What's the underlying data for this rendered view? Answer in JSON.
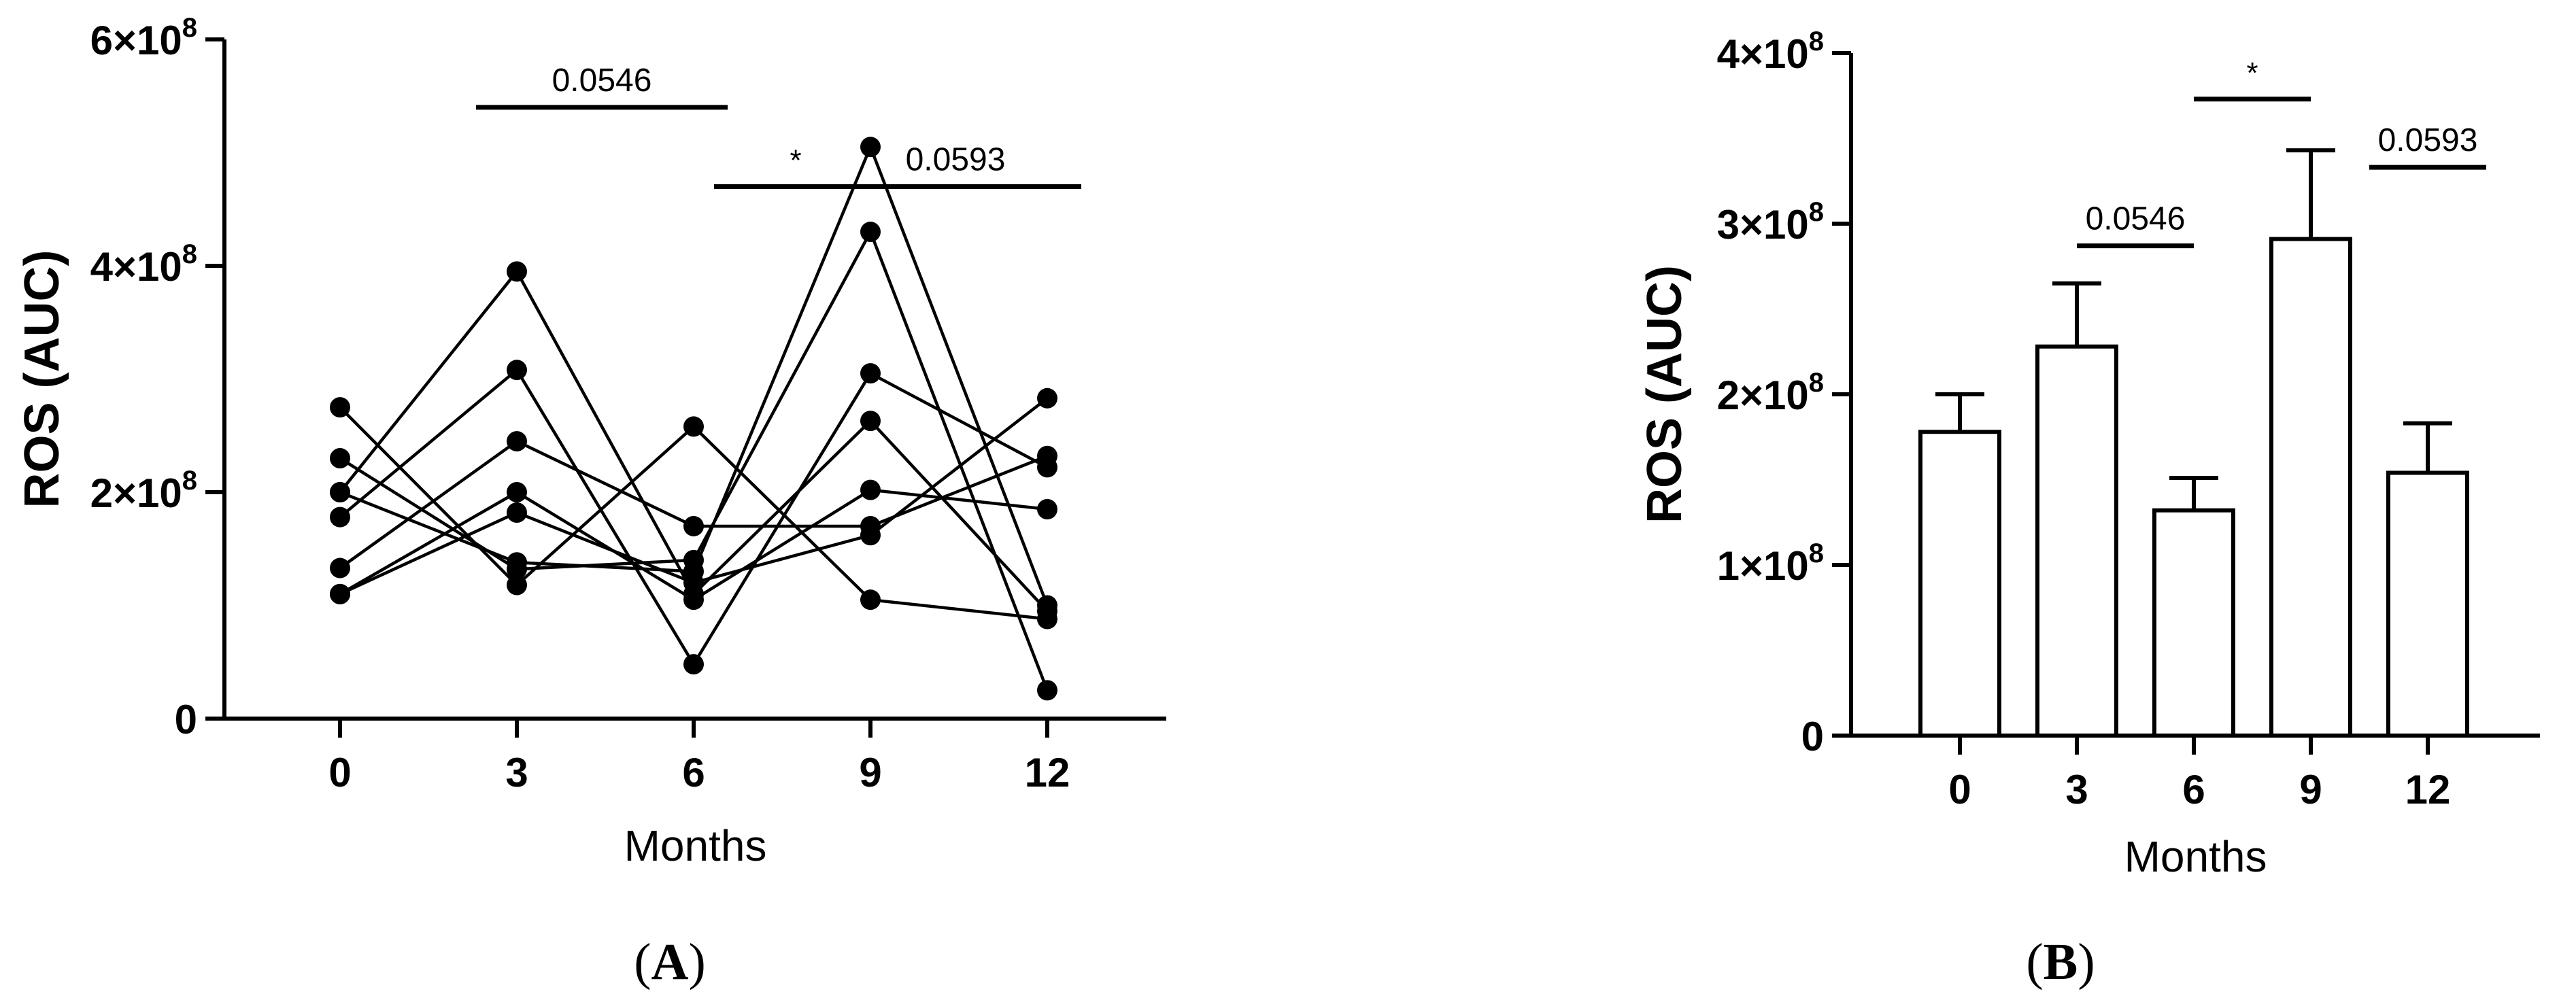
{
  "chart_data": [
    {
      "panel": "A",
      "type": "line",
      "xlabel": "Months",
      "ylabel": "ROS (AUC)",
      "x": [
        0,
        3,
        6,
        9,
        12
      ],
      "x_tick_labels": [
        "0",
        "3",
        "6",
        "9",
        "12"
      ],
      "ylim": [
        0,
        600000000
      ],
      "y_ticks": [
        {
          "value": 0,
          "base": "0",
          "exp": ""
        },
        {
          "value": 200000000,
          "base": "2×10",
          "exp": "8"
        },
        {
          "value": 400000000,
          "base": "4×10",
          "exp": "8"
        },
        {
          "value": 600000000,
          "base": "6×10",
          "exp": "8"
        }
      ],
      "grid": false,
      "series": [
        {
          "values": [
            275000000,
            118000000,
            258000000,
            105000000,
            88000000
          ]
        },
        {
          "values": [
            230000000,
            132000000,
            140000000,
            430000000,
            25000000
          ]
        },
        {
          "values": [
            200000000,
            138000000,
            130000000,
            505000000,
            100000000
          ]
        },
        {
          "values": [
            200000000,
            395000000,
            110000000,
            263000000,
            95000000
          ]
        },
        {
          "values": [
            178000000,
            308000000,
            48000000,
            305000000,
            222000000
          ]
        },
        {
          "values": [
            133000000,
            245000000,
            170000000,
            170000000,
            232000000
          ]
        },
        {
          "values": [
            110000000,
            182000000,
            120000000,
            162000000,
            283000000
          ]
        },
        {
          "values": [
            110000000,
            200000000,
            105000000,
            202000000,
            185000000
          ]
        }
      ],
      "annotations": [
        {
          "label": "0.0546",
          "from": 3,
          "to": 6,
          "y": 540000000
        },
        {
          "label": "*",
          "from": 6,
          "to": 9,
          "y": 470000000
        },
        {
          "label": "0.0593",
          "from": 9,
          "to": 12,
          "y": 470000000
        }
      ]
    },
    {
      "panel": "B",
      "type": "bar",
      "xlabel": "Months",
      "ylabel": "ROS (AUC)",
      "categories": [
        "0",
        "3",
        "6",
        "9",
        "12"
      ],
      "values": [
        178000000,
        228000000,
        132000000,
        291000000,
        154000000
      ],
      "errors": [
        22000000,
        37000000,
        19000000,
        52000000,
        29000000
      ],
      "ylim": [
        0,
        400000000
      ],
      "y_ticks": [
        {
          "value": 0,
          "base": "0",
          "exp": ""
        },
        {
          "value": 100000000,
          "base": "1×10",
          "exp": "8"
        },
        {
          "value": 200000000,
          "base": "2×10",
          "exp": "8"
        },
        {
          "value": 300000000,
          "base": "3×10",
          "exp": "8"
        },
        {
          "value": 400000000,
          "base": "4×10",
          "exp": "8"
        }
      ],
      "grid": false,
      "annotations": [
        {
          "label": "0.0546",
          "from": 1,
          "to": 2,
          "y": 287000000
        },
        {
          "label": "*",
          "from": 2,
          "to": 3,
          "y": 373000000
        },
        {
          "label": "0.0593",
          "from": 3.5,
          "to": 4.5,
          "y": 333000000
        }
      ]
    }
  ],
  "captions": {
    "a": {
      "open": "(",
      "letter": "A",
      "close": ")"
    },
    "b": {
      "open": "(",
      "letter": "B",
      "close": ")"
    }
  }
}
